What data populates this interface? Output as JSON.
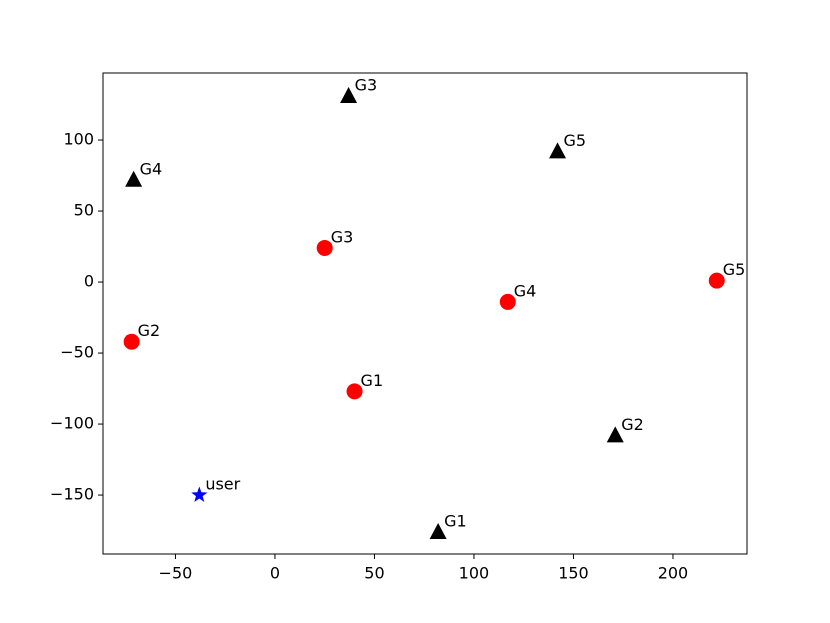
{
  "chart_data": {
    "type": "scatter",
    "xlim": [
      -86.4,
      237.2
    ],
    "ylim": [
      -191.5,
      147.2
    ],
    "xticks": [
      {
        "value": -50,
        "label": "−50"
      },
      0,
      50,
      100,
      150,
      200
    ],
    "yticks": [
      {
        "value": -150,
        "label": "−150"
      },
      {
        "value": -100,
        "label": "−100"
      },
      {
        "value": -50,
        "label": "−50"
      },
      0,
      50,
      100
    ],
    "series": [
      {
        "color": "#ff0000",
        "marker": "circle",
        "x": [
          40,
          -72,
          25,
          117,
          222
        ],
        "values": [
          -77,
          -42,
          24,
          -14,
          1
        ],
        "labels": [
          "G1",
          "G2",
          "G3",
          "G4",
          "G5"
        ]
      },
      {
        "color": "#000000",
        "marker": "triangle",
        "x": [
          82,
          171,
          37,
          -71,
          142
        ],
        "values": [
          -176,
          -108,
          131,
          72,
          92
        ],
        "labels": [
          "G1",
          "G2",
          "G3",
          "G4",
          "G5"
        ]
      },
      {
        "color": "#0000ff",
        "marker": "star",
        "x": [
          -38
        ],
        "values": [
          -150
        ],
        "labels": [
          "user"
        ]
      }
    ]
  }
}
